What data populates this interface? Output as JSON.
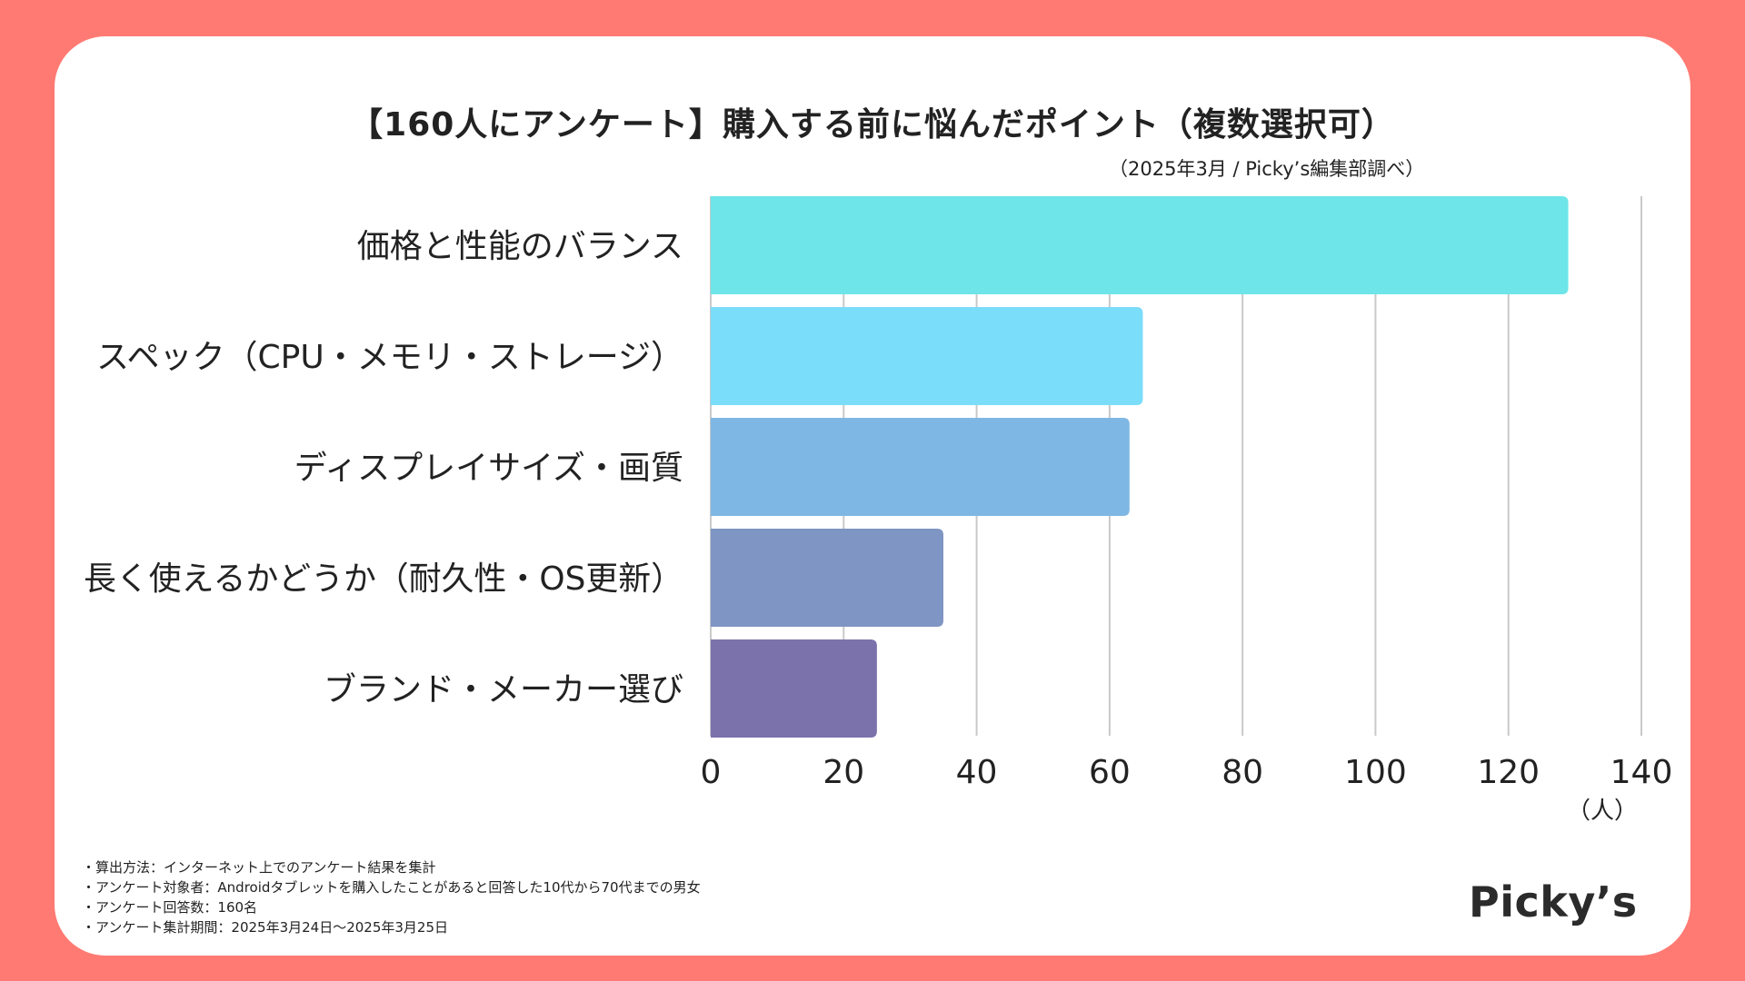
{
  "header": {
    "title": "【160人にアンケート】購入する前に悩んだポイント（複数選択可）",
    "source": "（2025年3月 / Picky’s編集部調べ）"
  },
  "chart_data": {
    "type": "bar",
    "orientation": "horizontal",
    "categories": [
      "価格と性能のバランス",
      "スペック（CPU・メモリ・ストレージ）",
      "ディスプレイサイズ・画質",
      "長く使えるかどうか（耐久性・OS更新）",
      "ブランド・メーカー選び"
    ],
    "values": [
      129,
      65,
      63,
      35,
      25
    ],
    "bar_colors": [
      "#6EE5E8",
      "#7ADDFA",
      "#7FB7E4",
      "#7F95C3",
      "#7B72AC"
    ],
    "xlim": [
      0,
      140
    ],
    "xticks": [
      0,
      20,
      40,
      60,
      80,
      100,
      120,
      140
    ],
    "xlabel": "（人）",
    "grid": true
  },
  "notes": [
    "・算出方法：インターネット上でのアンケート結果を集計",
    "・アンケート対象者：Androidタブレットを購入したことがあると回答した10代から70代までの男女",
    "・アンケート回答数：160名",
    "・アンケート集計期間：2025年3月24日〜2025年3月25日"
  ],
  "brand": {
    "logo": "Picky’s"
  }
}
